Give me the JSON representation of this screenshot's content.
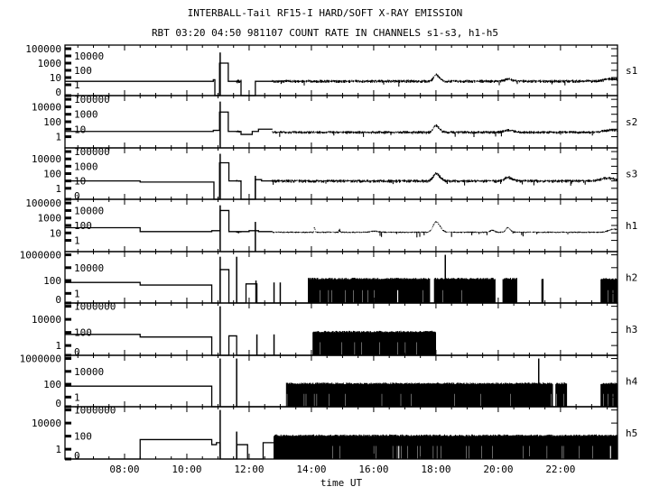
{
  "chart_data": {
    "type": "line",
    "title": "INTERBALL-Tail RF15-I HARD/SOFT X-RAY EMISSION",
    "subtitle": "RBT 03:20 04:50 981107  COUNT RATE IN CHANNELS s1-s3, h1-h5",
    "xlabel": "time UT",
    "xlim_hours": [
      6.087,
      23.83
    ],
    "xticks": [
      {
        "t": 8,
        "label": "08:00"
      },
      {
        "t": 10,
        "label": "10:00"
      },
      {
        "t": 12,
        "label": "12:00"
      },
      {
        "t": 14,
        "label": "14:00"
      },
      {
        "t": 16,
        "label": "16:00"
      },
      {
        "t": 18,
        "label": "18:00"
      },
      {
        "t": 20,
        "label": "20:00"
      },
      {
        "t": 22,
        "label": "22:00"
      }
    ],
    "panels": [
      {
        "name": "s1",
        "ymax_log": 5,
        "yticks": [
          "0",
          "1",
          "10",
          "100",
          "1000",
          "10000",
          "100000"
        ],
        "steps": [
          [
            6.09,
            3
          ],
          [
            10.85,
            5
          ],
          [
            10.9,
            0
          ],
          [
            11.05,
            1000
          ],
          [
            11.33,
            3
          ],
          [
            11.74,
            0
          ],
          [
            12.2,
            3
          ],
          [
            12.75,
            null
          ]
        ],
        "spikes": [
          [
            11.07,
            30000
          ]
        ],
        "noise": [
          [
            11.6,
            11.74,
            0.5,
            0.3
          ],
          [
            12.75,
            23.83,
            0.5,
            0.25
          ]
        ],
        "bumps": [
          [
            18.0,
            0.9,
            0.15
          ],
          [
            20.3,
            0.3,
            0.2
          ],
          [
            23.6,
            0.3,
            0.4
          ]
        ],
        "blocks": []
      },
      {
        "name": "s2",
        "ymax_log": 5,
        "yticks": [
          "1",
          "10",
          "100",
          "1000",
          "10000",
          "100000"
        ],
        "steps": [
          [
            6.09,
            5
          ],
          [
            10.85,
            7
          ],
          [
            11.05,
            2000
          ],
          [
            11.33,
            5
          ],
          [
            11.74,
            2
          ],
          [
            12.1,
            5
          ],
          [
            12.3,
            10
          ],
          [
            12.75,
            null
          ]
        ],
        "spikes": [
          [
            11.07,
            50000
          ]
        ],
        "noise": [
          [
            11.55,
            11.7,
            0.7,
            0.2
          ],
          [
            12.75,
            23.83,
            0.6,
            0.22
          ]
        ],
        "bumps": [
          [
            18.0,
            0.9,
            0.15
          ],
          [
            20.3,
            0.3,
            0.25
          ],
          [
            23.6,
            0.3,
            0.4
          ]
        ],
        "blocks": []
      },
      {
        "name": "s3",
        "ymax_log": 5,
        "yticks": [
          "0",
          "1",
          "10",
          "100",
          "1000",
          "10000",
          "100000"
        ],
        "steps": [
          [
            6.09,
            10
          ],
          [
            8.5,
            7
          ],
          [
            10.87,
            0
          ],
          [
            11.05,
            3000
          ],
          [
            11.35,
            10
          ],
          [
            11.74,
            0
          ],
          [
            12.2,
            15
          ],
          [
            12.4,
            10
          ],
          [
            12.75,
            null
          ]
        ],
        "spikes": [
          [
            11.07,
            50000
          ],
          [
            12.2,
            50
          ]
        ],
        "noise": [
          [
            11.6,
            11.74,
            1.0,
            0.2
          ],
          [
            12.75,
            23.83,
            1.0,
            0.25
          ]
        ],
        "bumps": [
          [
            18.0,
            1.0,
            0.18
          ],
          [
            20.3,
            0.5,
            0.2
          ],
          [
            23.5,
            0.4,
            0.4
          ]
        ],
        "blocks": []
      },
      {
        "name": "h1",
        "ymax_log": 5,
        "yticks": [
          "1",
          "10",
          "100",
          "1000",
          "10000",
          "100000"
        ],
        "steps": [
          [
            6.09,
            50
          ],
          [
            8.5,
            15
          ],
          [
            10.8,
            20
          ],
          [
            11.07,
            10000
          ],
          [
            11.35,
            15
          ],
          [
            12.0,
            20
          ],
          [
            12.3,
            15
          ],
          [
            12.75,
            null
          ]
        ],
        "spikes": [
          [
            11.07,
            50000
          ],
          [
            12.2,
            300
          ]
        ],
        "noise": [
          [
            11.6,
            11.74,
            1.1,
            0.15
          ],
          [
            12.75,
            23.83,
            1.1,
            0.12
          ]
        ],
        "bumps": [
          [
            14.1,
            0.6,
            0.03
          ],
          [
            14.9,
            0.4,
            0.03
          ],
          [
            16.0,
            0.15,
            0.2
          ],
          [
            18.0,
            1.4,
            0.18
          ],
          [
            19.8,
            0.3,
            0.1
          ],
          [
            20.3,
            0.6,
            0.12
          ],
          [
            23.7,
            0.4,
            0.3
          ]
        ],
        "blocks": []
      },
      {
        "name": "h2",
        "ymax_log": 6,
        "yticks": [
          "0",
          "1",
          "100",
          "10000",
          "1000000"
        ],
        "steps": [
          [
            6.09,
            50
          ],
          [
            8.5,
            20
          ],
          [
            10.8,
            0
          ],
          [
            11.07,
            5000
          ],
          [
            11.35,
            0
          ],
          [
            11.9,
            30
          ],
          [
            12.25,
            0
          ],
          [
            23.83,
            null
          ]
        ],
        "spikes": [
          [
            11.07,
            500000
          ],
          [
            11.6,
            500000
          ],
          [
            12.22,
            100
          ],
          [
            12.8,
            50
          ],
          [
            13.0,
            50
          ],
          [
            18.3,
            1000000
          ]
        ],
        "noise": [],
        "bumps": [],
        "blocks": [
          [
            13.9,
            17.8,
            150
          ],
          [
            17.95,
            19.9,
            150
          ],
          [
            20.15,
            20.6,
            150
          ],
          [
            21.4,
            21.45,
            150
          ],
          [
            23.3,
            23.83,
            150
          ]
        ]
      },
      {
        "name": "h3",
        "ymax_log": 6,
        "yticks": [
          "0",
          "1",
          "100",
          "10000",
          "1000000"
        ],
        "steps": [
          [
            6.09,
            50
          ],
          [
            8.5,
            20
          ],
          [
            10.8,
            0
          ],
          [
            11.35,
            30
          ],
          [
            11.6,
            0
          ],
          [
            23.83,
            null
          ]
        ],
        "spikes": [
          [
            11.07,
            1000000
          ],
          [
            12.25,
            50
          ],
          [
            12.8,
            50
          ]
        ],
        "noise": [],
        "bumps": [],
        "blocks": [
          [
            14.05,
            18.0,
            100
          ]
        ]
      },
      {
        "name": "h4",
        "ymax_log": 6,
        "yticks": [
          "0",
          "1",
          "100",
          "10000",
          "1000000"
        ],
        "steps": [
          [
            6.09,
            50
          ],
          [
            10.8,
            0
          ],
          [
            23.83,
            null
          ]
        ],
        "spikes": [
          [
            11.07,
            1000000
          ],
          [
            11.6,
            1000000
          ],
          [
            21.3,
            1000000
          ]
        ],
        "noise": [],
        "bumps": [],
        "blocks": [
          [
            13.2,
            21.75,
            100
          ],
          [
            21.85,
            22.2,
            100
          ],
          [
            23.3,
            23.83,
            100
          ]
        ]
      },
      {
        "name": "h5",
        "ymax_log": 6,
        "yticks": [
          "0",
          "1",
          "100",
          "10000",
          "1000000"
        ],
        "steps": [
          [
            6.09,
            0
          ],
          [
            8.5,
            30
          ],
          [
            10.8,
            5
          ],
          [
            10.95,
            10
          ],
          [
            11.07,
            0
          ],
          [
            11.6,
            5
          ],
          [
            11.95,
            0
          ],
          [
            12.45,
            10
          ],
          [
            12.8,
            null
          ]
        ],
        "spikes": [
          [
            11.07,
            1000000
          ],
          [
            11.6,
            500
          ]
        ],
        "noise": [],
        "bumps": [],
        "blocks": [
          [
            12.8,
            23.83,
            100
          ]
        ]
      }
    ]
  }
}
